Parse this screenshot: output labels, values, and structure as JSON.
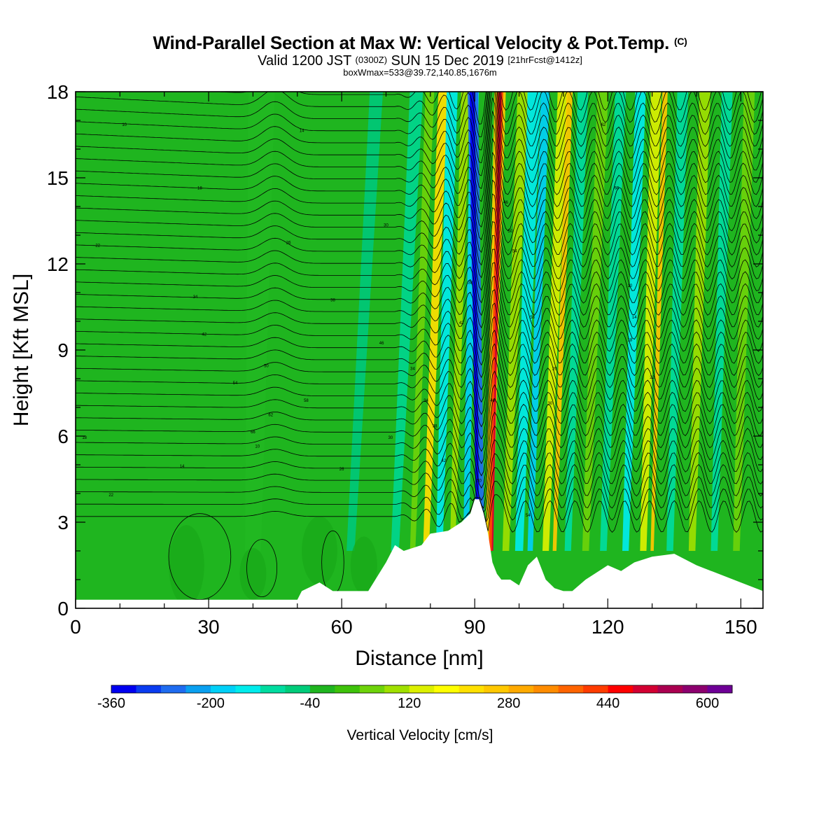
{
  "header": {
    "title": "Wind-Parallel Section at Max W: Vertical Velocity & Pot.Temp.",
    "title_mark": "(C)",
    "valid_prefix": "Valid 1200 JST",
    "valid_utc": "(0300Z)",
    "valid_date": "SUN 15 Dec 2019",
    "forecast": "[21hrFcst@1412z]",
    "boxline": "boxWmax=533@39.72,140.85,1676m"
  },
  "colors": {
    "background_field": "#1fb51f",
    "terrain": "#ffffff",
    "contour": "#000000"
  },
  "chart_data": {
    "type": "heatmap",
    "xlabel": "Distance [nm]",
    "ylabel": "Height [Kft MSL]",
    "xlim": [
      0,
      155
    ],
    "ylim": [
      0,
      18
    ],
    "xticks": [
      0,
      30,
      60,
      90,
      120,
      150
    ],
    "yticks": [
      0,
      3,
      6,
      9,
      12,
      15,
      18
    ],
    "terrain_profile": {
      "x": [
        0,
        50,
        51,
        55,
        58,
        60,
        62,
        66,
        68,
        70,
        72,
        74,
        78,
        80,
        84,
        87,
        89,
        90,
        91,
        92,
        93,
        94,
        95,
        96,
        98,
        100,
        102,
        104,
        106,
        108,
        110,
        112,
        115,
        118,
        120,
        123,
        126,
        130,
        135,
        140,
        145,
        150,
        155
      ],
      "y": [
        0.3,
        0.3,
        0.6,
        0.9,
        0.6,
        0.6,
        0.6,
        0.6,
        1.1,
        1.6,
        2.2,
        2.0,
        2.2,
        2.6,
        2.7,
        3.0,
        3.3,
        3.8,
        3.8,
        3.3,
        2.6,
        1.6,
        1.2,
        1.0,
        1.0,
        0.8,
        1.5,
        1.8,
        1.0,
        0.7,
        0.6,
        0.6,
        1.0,
        1.3,
        1.5,
        1.3,
        1.6,
        1.8,
        1.9,
        1.5,
        1.2,
        0.9,
        0.6
      ]
    },
    "wave_zones": [
      {
        "x_center": 92.8,
        "peak_w": 533,
        "sign": "up"
      },
      {
        "x_center": 90.2,
        "peak_w": -360,
        "sign": "down"
      }
    ],
    "isentrope_labels": [
      "10",
      "14",
      "18",
      "22",
      "26",
      "30",
      "34",
      "38",
      "42",
      "46",
      "50",
      "54",
      "58",
      "62",
      "66"
    ],
    "colorbar": {
      "label": "Vertical Velocity [cm/s]",
      "tick_labels": [
        "-360",
        "-200",
        "-40",
        "120",
        "280",
        "440",
        "600"
      ],
      "colors": [
        "#0000f0",
        "#0a3cf0",
        "#1f6cf0",
        "#0aa0f0",
        "#00d0f8",
        "#00ecec",
        "#00dca0",
        "#00cc7a",
        "#1fb51f",
        "#3ec20a",
        "#6ed30a",
        "#a0e000",
        "#dcf000",
        "#ffff00",
        "#ffe000",
        "#ffc800",
        "#ffaa00",
        "#ff8c00",
        "#ff6400",
        "#ff3c00",
        "#ff0000",
        "#d20032",
        "#aa0050",
        "#8c006e",
        "#6e0096"
      ]
    }
  }
}
